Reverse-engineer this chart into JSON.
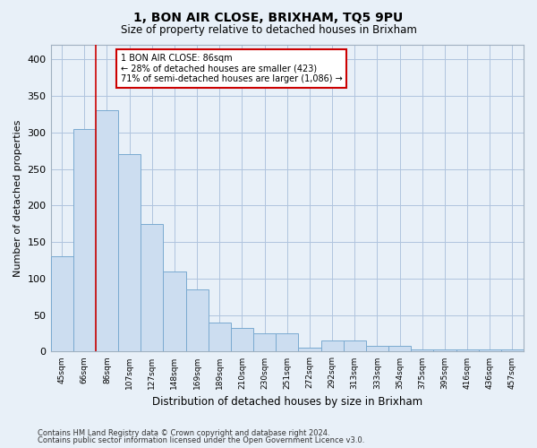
{
  "title": "1, BON AIR CLOSE, BRIXHAM, TQ5 9PU",
  "subtitle": "Size of property relative to detached houses in Brixham",
  "xlabel": "Distribution of detached houses by size in Brixham",
  "ylabel": "Number of detached properties",
  "categories": [
    "45sqm",
    "66sqm",
    "86sqm",
    "107sqm",
    "127sqm",
    "148sqm",
    "169sqm",
    "189sqm",
    "210sqm",
    "230sqm",
    "251sqm",
    "272sqm",
    "292sqm",
    "313sqm",
    "333sqm",
    "354sqm",
    "375sqm",
    "395sqm",
    "416sqm",
    "436sqm",
    "457sqm"
  ],
  "values": [
    130,
    305,
    330,
    270,
    175,
    110,
    85,
    40,
    32,
    25,
    25,
    5,
    15,
    15,
    8,
    8,
    3,
    3,
    3,
    3,
    3
  ],
  "highlight_index": 2,
  "bar_color": "#ccddf0",
  "bar_edge_color": "#7aaad0",
  "highlight_edge_color": "#cc0000",
  "annotation_text": "1 BON AIR CLOSE: 86sqm\n← 28% of detached houses are smaller (423)\n71% of semi-detached houses are larger (1,086) →",
  "annotation_box_color": "#ffffff",
  "annotation_box_edge": "#cc0000",
  "ylim": [
    0,
    420
  ],
  "yticks": [
    0,
    50,
    100,
    150,
    200,
    250,
    300,
    350,
    400
  ],
  "grid_color": "#b0c4de",
  "background_color": "#e8f0f8",
  "footer_line1": "Contains HM Land Registry data © Crown copyright and database right 2024.",
  "footer_line2": "Contains public sector information licensed under the Open Government Licence v3.0."
}
